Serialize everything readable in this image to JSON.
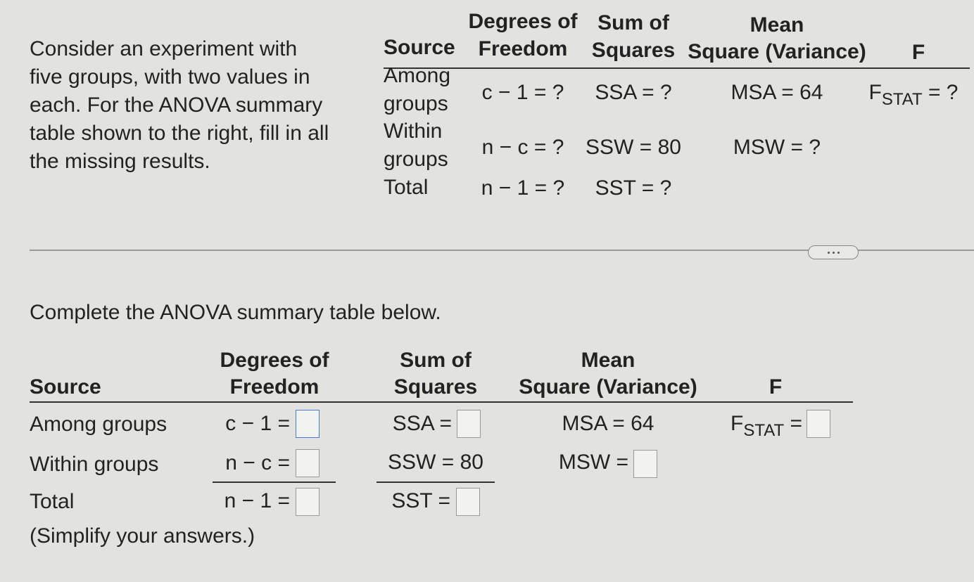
{
  "problem": {
    "lines": [
      "Consider an experiment with",
      "five groups, with two values in",
      "each. For the ANOVA summary",
      "table shown to the right, fill in all",
      "the missing results."
    ]
  },
  "given_table": {
    "headers": {
      "source": [
        "Source"
      ],
      "df": [
        "Degrees of",
        "Freedom"
      ],
      "ss": [
        "Sum of",
        "Squares"
      ],
      "ms": [
        "Mean",
        "Square (Variance)"
      ],
      "f": [
        "F"
      ]
    },
    "rows": [
      {
        "source": [
          "Among",
          "groups"
        ],
        "df": "c − 1 = ?",
        "ss": "SSA = ?",
        "ms": "MSA = 64",
        "f": {
          "symbol": "F",
          "subscript": "STAT",
          "suffix": "= ?"
        }
      },
      {
        "source": [
          "Within",
          "groups"
        ],
        "df": "n − c = ?",
        "ss": "SSW = 80",
        "ms": "MSW = ?"
      },
      {
        "source": [
          "Total"
        ],
        "df": "n − 1 = ?",
        "ss": "SST = ?"
      }
    ]
  },
  "instruction": "Complete the ANOVA summary table below.",
  "answer_table": {
    "headers": {
      "source": [
        "Source"
      ],
      "df": [
        "Degrees of",
        "Freedom"
      ],
      "ss": [
        "Sum of",
        "Squares"
      ],
      "ms": [
        "Mean",
        "Square (Variance)"
      ],
      "f": [
        "F"
      ]
    },
    "rows": [
      {
        "source": "Among groups",
        "df": "c − 1 =",
        "ss": "SSA =",
        "ms": "MSA = 64",
        "f": {
          "symbol": "F",
          "subscript": "STAT",
          "suffix": "="
        }
      },
      {
        "source": "Within groups",
        "df": "n − c =",
        "ss": "SSW = 80",
        "ms": "MSW ="
      },
      {
        "source": "Total",
        "df": "n − 1 =",
        "ss": "SST ="
      }
    ]
  },
  "note": "(Simplify your answers.)"
}
